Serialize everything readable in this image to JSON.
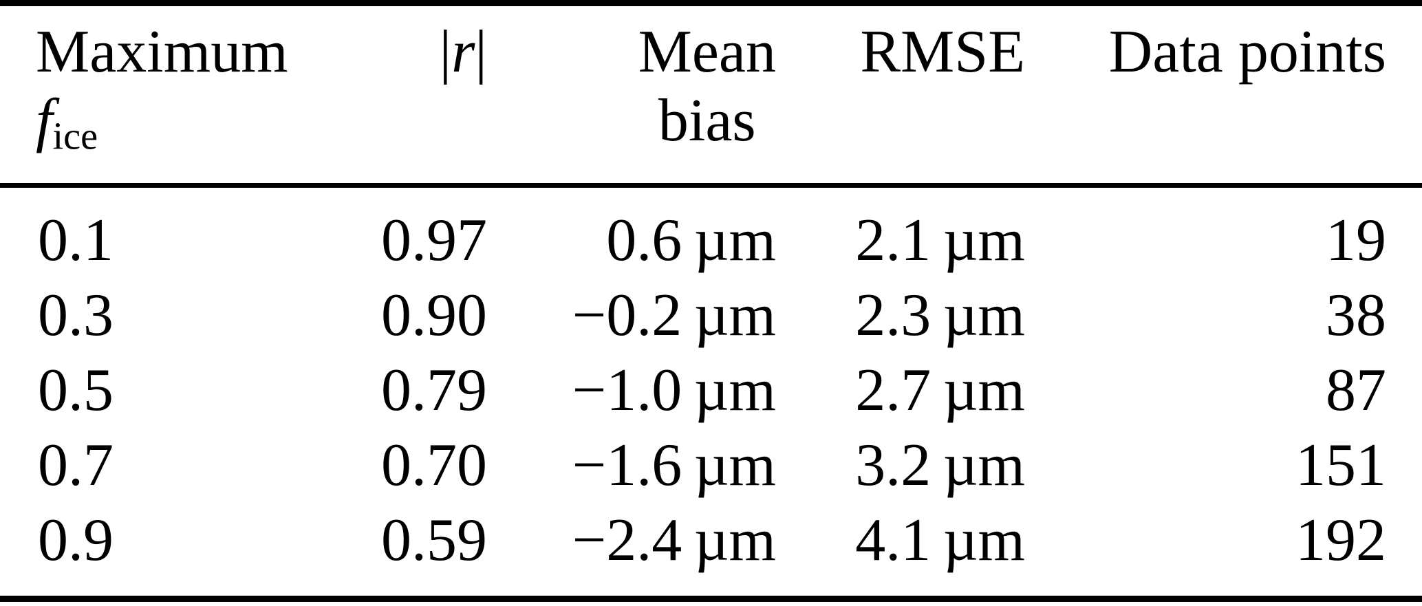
{
  "page": {
    "background_color": "#ffffff",
    "text_color": "#000000",
    "rule_color": "#000000"
  },
  "table": {
    "header": {
      "col1_line1": "Maximum",
      "col1_symbol": "f",
      "col1_subscript": "ice",
      "col2_open_bar": "|",
      "col2_symbol": "r",
      "col2_close_bar": "|",
      "col3_line1": "Mean",
      "col3_line2": "bias",
      "col4_label": "RMSE",
      "col5_label": "Data points"
    },
    "rows": [
      {
        "max_fice": "0.1",
        "r": "0.97",
        "mean_bias": "0.6 µm",
        "rmse": "2.1 µm",
        "data_points": "19"
      },
      {
        "max_fice": "0.3",
        "r": "0.90",
        "mean_bias": "−0.2 µm",
        "rmse": "2.3 µm",
        "data_points": "38"
      },
      {
        "max_fice": "0.5",
        "r": "0.79",
        "mean_bias": "−1.0 µm",
        "rmse": "2.7 µm",
        "data_points": "87"
      },
      {
        "max_fice": "0.7",
        "r": "0.70",
        "mean_bias": "−1.6 µm",
        "rmse": "3.2 µm",
        "data_points": "151"
      },
      {
        "max_fice": "0.9",
        "r": "0.59",
        "mean_bias": "−2.4 µm",
        "rmse": "4.1 µm",
        "data_points": "192"
      }
    ]
  }
}
